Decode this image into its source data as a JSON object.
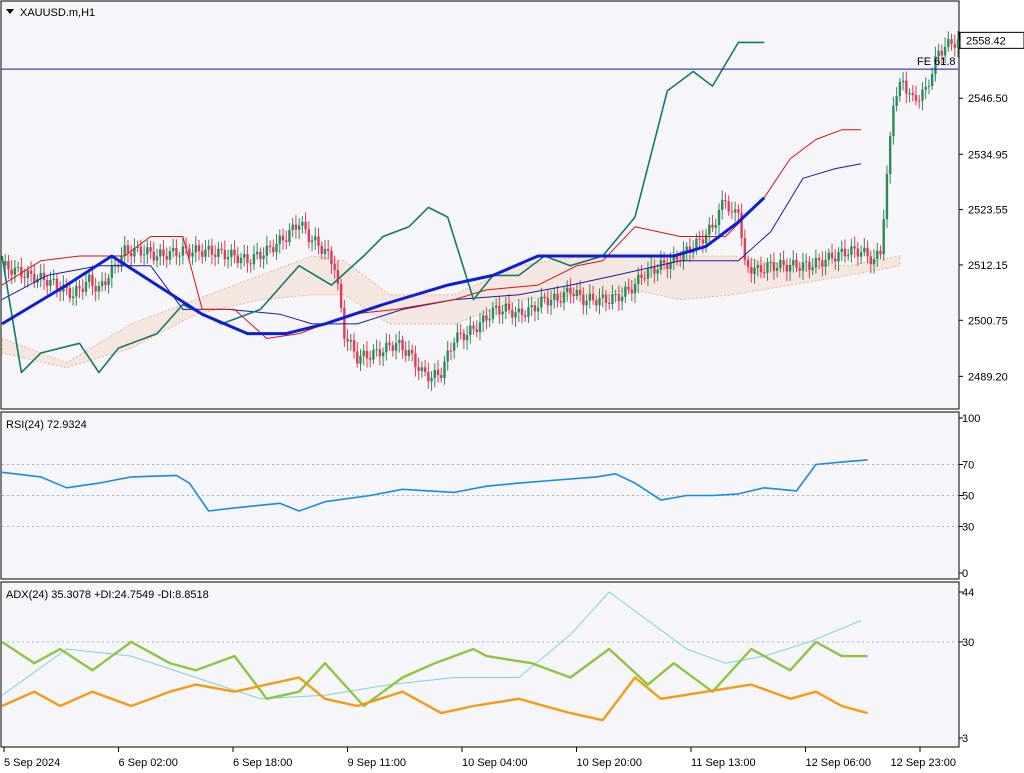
{
  "colors": {
    "background": "#f5f5fa",
    "frame": "#000000",
    "bull_candle": "#2e8b57",
    "bear_candle": "#e23b57",
    "ma_blue": "#0a1fd6",
    "kijun": "#1a1aa8",
    "tenkan": "#e01010",
    "chikou": "#137a6a",
    "kumo": "#f2a56a",
    "rsi": "#1e88e5",
    "adx": "#7cd6d6",
    "plus_di": "#8dc63f",
    "minus_di": "#f39c12",
    "price_label_bg": "#ffffff"
  },
  "header": {
    "symbol": "XAUUSD.m,H1",
    "current_price": "2558.42",
    "fe_label": "FE 61.8"
  },
  "chart_data": [
    {
      "type": "candlestick",
      "panel": "main",
      "title": "XAUUSD.m,H1",
      "y_ticks": [
        "2558.42",
        "2546.50",
        "2534.95",
        "2523.55",
        "2512.15",
        "2500.75",
        "2489.20"
      ],
      "ylim": [
        2483.5,
        2565.5
      ],
      "fe_level": 2552.5,
      "close_path": [
        [
          0,
          2512
        ],
        [
          8,
          2510
        ],
        [
          14,
          2509
        ],
        [
          22,
          2506
        ],
        [
          27,
          2509
        ],
        [
          30,
          2507
        ],
        [
          38,
          2515
        ],
        [
          44,
          2515
        ],
        [
          48,
          2514
        ],
        [
          56,
          2515
        ],
        [
          64,
          2515
        ],
        [
          72,
          2514
        ],
        [
          76,
          2513
        ],
        [
          82,
          2515
        ],
        [
          88,
          2518
        ],
        [
          92,
          2521
        ],
        [
          95,
          2518
        ],
        [
          100,
          2515
        ],
        [
          103,
          2512
        ],
        [
          106,
          2498
        ],
        [
          110,
          2493
        ],
        [
          116,
          2494
        ],
        [
          122,
          2496
        ],
        [
          126,
          2494
        ],
        [
          130,
          2490
        ],
        [
          133,
          2489
        ],
        [
          136,
          2490
        ],
        [
          140,
          2497
        ],
        [
          144,
          2498
        ],
        [
          148,
          2500
        ],
        [
          151,
          2502
        ],
        [
          153,
          2503
        ],
        [
          156,
          2503
        ],
        [
          160,
          2502
        ],
        [
          164,
          2503
        ],
        [
          168,
          2505
        ],
        [
          172,
          2505
        ],
        [
          176,
          2507
        ],
        [
          180,
          2505
        ],
        [
          184,
          2505
        ],
        [
          188,
          2505
        ],
        [
          192,
          2506
        ],
        [
          196,
          2508
        ],
        [
          198,
          2510
        ],
        [
          204,
          2512
        ],
        [
          208,
          2513
        ],
        [
          212,
          2515
        ],
        [
          216,
          2517
        ],
        [
          220,
          2520
        ],
        [
          224,
          2526
        ],
        [
          226,
          2522
        ],
        [
          228,
          2524
        ],
        [
          230,
          2512
        ],
        [
          234,
          2511
        ],
        [
          238,
          2512
        ],
        [
          242,
          2512
        ],
        [
          246,
          2512
        ],
        [
          250,
          2512
        ],
        [
          254,
          2513
        ],
        [
          258,
          2514
        ],
        [
          262,
          2515
        ],
        [
          266,
          2515
        ],
        [
          270,
          2513
        ],
        [
          272,
          2515
        ],
        [
          274,
          2530
        ],
        [
          276,
          2546
        ],
        [
          279,
          2550
        ],
        [
          282,
          2546
        ],
        [
          286,
          2548
        ],
        [
          290,
          2556
        ],
        [
          294,
          2558
        ],
        [
          296,
          2558
        ]
      ],
      "ma_path": [
        [
          0,
          2500
        ],
        [
          20,
          2508
        ],
        [
          34,
          2514
        ],
        [
          48,
          2508
        ],
        [
          62,
          2502
        ],
        [
          76,
          2498
        ],
        [
          88,
          2498
        ],
        [
          100,
          2500
        ],
        [
          118,
          2504
        ],
        [
          138,
          2508
        ],
        [
          152,
          2510
        ],
        [
          166,
          2514
        ],
        [
          180,
          2514
        ],
        [
          196,
          2514
        ],
        [
          208,
          2514
        ],
        [
          218,
          2516
        ],
        [
          228,
          2521
        ],
        [
          236,
          2526
        ]
      ],
      "tenkan_path": [
        [
          0,
          2508
        ],
        [
          12,
          2513
        ],
        [
          24,
          2514
        ],
        [
          38,
          2514
        ],
        [
          46,
          2518
        ],
        [
          56,
          2518
        ],
        [
          62,
          2503
        ],
        [
          72,
          2503
        ],
        [
          82,
          2497
        ],
        [
          92,
          2498
        ],
        [
          108,
          2502
        ],
        [
          122,
          2503
        ],
        [
          140,
          2505
        ],
        [
          150,
          2507
        ],
        [
          166,
          2508
        ],
        [
          178,
          2512
        ],
        [
          186,
          2513
        ],
        [
          196,
          2520
        ],
        [
          210,
          2518
        ],
        [
          224,
          2518
        ],
        [
          236,
          2526
        ],
        [
          244,
          2534
        ],
        [
          252,
          2538
        ],
        [
          260,
          2540
        ],
        [
          266,
          2540
        ]
      ],
      "kijun_path": [
        [
          0,
          2505
        ],
        [
          14,
          2510
        ],
        [
          30,
          2512
        ],
        [
          46,
          2512
        ],
        [
          56,
          2503
        ],
        [
          70,
          2503
        ],
        [
          86,
          2502
        ],
        [
          96,
          2500
        ],
        [
          110,
          2500
        ],
        [
          124,
          2503
        ],
        [
          140,
          2505
        ],
        [
          160,
          2506
        ],
        [
          176,
          2508
        ],
        [
          190,
          2510
        ],
        [
          210,
          2513
        ],
        [
          228,
          2513
        ],
        [
          238,
          2519
        ],
        [
          248,
          2530
        ],
        [
          258,
          2532
        ],
        [
          266,
          2533
        ]
      ],
      "chikou_path": [
        [
          0,
          2514
        ],
        [
          6,
          2490
        ],
        [
          12,
          2494
        ],
        [
          24,
          2496
        ],
        [
          30,
          2490
        ],
        [
          36,
          2495
        ],
        [
          48,
          2498
        ],
        [
          56,
          2504
        ],
        [
          68,
          2500
        ],
        [
          80,
          2503
        ],
        [
          92,
          2512
        ],
        [
          102,
          2508
        ],
        [
          112,
          2514
        ],
        [
          118,
          2518
        ],
        [
          126,
          2520
        ],
        [
          132,
          2524
        ],
        [
          138,
          2522
        ],
        [
          146,
          2505
        ],
        [
          152,
          2510
        ],
        [
          160,
          2510
        ],
        [
          168,
          2514
        ],
        [
          176,
          2512
        ],
        [
          186,
          2514
        ],
        [
          196,
          2522
        ],
        [
          206,
          2548
        ],
        [
          214,
          2552
        ],
        [
          220,
          2549
        ],
        [
          228,
          2558
        ],
        [
          236,
          2558
        ]
      ],
      "kumo_upper": [
        [
          0,
          2497
        ],
        [
          20,
          2492
        ],
        [
          40,
          2500
        ],
        [
          60,
          2505
        ],
        [
          80,
          2510
        ],
        [
          96,
          2514
        ],
        [
          106,
          2513
        ],
        [
          120,
          2506
        ],
        [
          140,
          2506
        ],
        [
          160,
          2512
        ],
        [
          180,
          2514
        ],
        [
          196,
          2514
        ],
        [
          210,
          2514
        ],
        [
          226,
          2514
        ],
        [
          244,
          2512
        ],
        [
          262,
          2512
        ],
        [
          278,
          2514
        ]
      ],
      "kumo_lower": [
        [
          0,
          2494
        ],
        [
          20,
          2491
        ],
        [
          40,
          2495
        ],
        [
          60,
          2502
        ],
        [
          80,
          2505
        ],
        [
          96,
          2506
        ],
        [
          106,
          2506
        ],
        [
          120,
          2500
        ],
        [
          140,
          2500
        ],
        [
          160,
          2505
        ],
        [
          180,
          2506
        ],
        [
          196,
          2507
        ],
        [
          210,
          2505
        ],
        [
          226,
          2506
        ],
        [
          244,
          2508
        ],
        [
          262,
          2510
        ],
        [
          278,
          2512
        ]
      ]
    },
    {
      "type": "line",
      "panel": "rsi",
      "title": "RSI(24) 72.9324",
      "y_ticks": [
        "100",
        "70",
        "50",
        "30",
        "0"
      ],
      "ylim": [
        0,
        100
      ],
      "levels": [
        70,
        50,
        30
      ],
      "series": [
        {
          "name": "RSI(24)",
          "values": [
            [
              0,
              65
            ],
            [
              12,
              62
            ],
            [
              20,
              55
            ],
            [
              30,
              58
            ],
            [
              40,
              62
            ],
            [
              54,
              63
            ],
            [
              58,
              58
            ],
            [
              64,
              40
            ],
            [
              72,
              42
            ],
            [
              86,
              45
            ],
            [
              92,
              40
            ],
            [
              100,
              46
            ],
            [
              114,
              50
            ],
            [
              124,
              54
            ],
            [
              140,
              52
            ],
            [
              150,
              56
            ],
            [
              160,
              58
            ],
            [
              172,
              60
            ],
            [
              184,
              62
            ],
            [
              190,
              64
            ],
            [
              196,
              58
            ],
            [
              204,
              47
            ],
            [
              212,
              50
            ],
            [
              220,
              50
            ],
            [
              228,
              51
            ],
            [
              236,
              55
            ],
            [
              246,
              53
            ],
            [
              252,
              70
            ],
            [
              262,
              72
            ],
            [
              268,
              73
            ]
          ]
        }
      ]
    },
    {
      "type": "line",
      "panel": "adx",
      "title": "ADX(24) 35.3078 +DI:24.7549 -DI:8.8518",
      "y_ticks": [
        "44",
        "30",
        "3"
      ],
      "ylim": [
        3,
        44
      ],
      "levels": [
        30
      ],
      "x_tick_labels": [
        "5 Sep 2024",
        "6 Sep 02:00",
        "6 Sep 18:00",
        "9 Sep 11:00",
        "10 Sep 04:00",
        "10 Sep 20:00",
        "11 Sep 13:00",
        "12 Sep 06:00",
        "12 Sep 23:00"
      ],
      "series": [
        {
          "name": "ADX",
          "values": [
            [
              0,
              15
            ],
            [
              20,
              28
            ],
            [
              40,
              26
            ],
            [
              60,
              20
            ],
            [
              80,
              14
            ],
            [
              100,
              15
            ],
            [
              120,
              18
            ],
            [
              140,
              20
            ],
            [
              160,
              20
            ],
            [
              176,
              32
            ],
            [
              188,
              44
            ],
            [
              200,
              36
            ],
            [
              212,
              28
            ],
            [
              224,
              24
            ],
            [
              236,
              26
            ],
            [
              250,
              30
            ],
            [
              266,
              36
            ]
          ]
        },
        {
          "name": "+DI",
          "values": [
            [
              0,
              30
            ],
            [
              10,
              24
            ],
            [
              18,
              28
            ],
            [
              28,
              22
            ],
            [
              40,
              30
            ],
            [
              52,
              24
            ],
            [
              60,
              22
            ],
            [
              72,
              26
            ],
            [
              82,
              14
            ],
            [
              92,
              16
            ],
            [
              100,
              24
            ],
            [
              112,
              12
            ],
            [
              124,
              20
            ],
            [
              134,
              24
            ],
            [
              146,
              28
            ],
            [
              150,
              26
            ],
            [
              164,
              24
            ],
            [
              176,
              20
            ],
            [
              188,
              28
            ],
            [
              200,
              18
            ],
            [
              208,
              24
            ],
            [
              220,
              16
            ],
            [
              232,
              28
            ],
            [
              244,
              22
            ],
            [
              252,
              30
            ],
            [
              260,
              26
            ],
            [
              268,
              26
            ]
          ]
        },
        {
          "name": "-DI",
          "values": [
            [
              0,
              12
            ],
            [
              10,
              16
            ],
            [
              18,
              12
            ],
            [
              28,
              16
            ],
            [
              40,
              12
            ],
            [
              52,
              16
            ],
            [
              60,
              18
            ],
            [
              72,
              16
            ],
            [
              82,
              18
            ],
            [
              92,
              20
            ],
            [
              100,
              14
            ],
            [
              110,
              12
            ],
            [
              124,
              16
            ],
            [
              136,
              10
            ],
            [
              146,
              12
            ],
            [
              160,
              14
            ],
            [
              176,
              10
            ],
            [
              186,
              8
            ],
            [
              196,
              20
            ],
            [
              204,
              14
            ],
            [
              218,
              16
            ],
            [
              232,
              18
            ],
            [
              244,
              14
            ],
            [
              252,
              16
            ],
            [
              260,
              12
            ],
            [
              268,
              10
            ]
          ]
        }
      ]
    }
  ]
}
